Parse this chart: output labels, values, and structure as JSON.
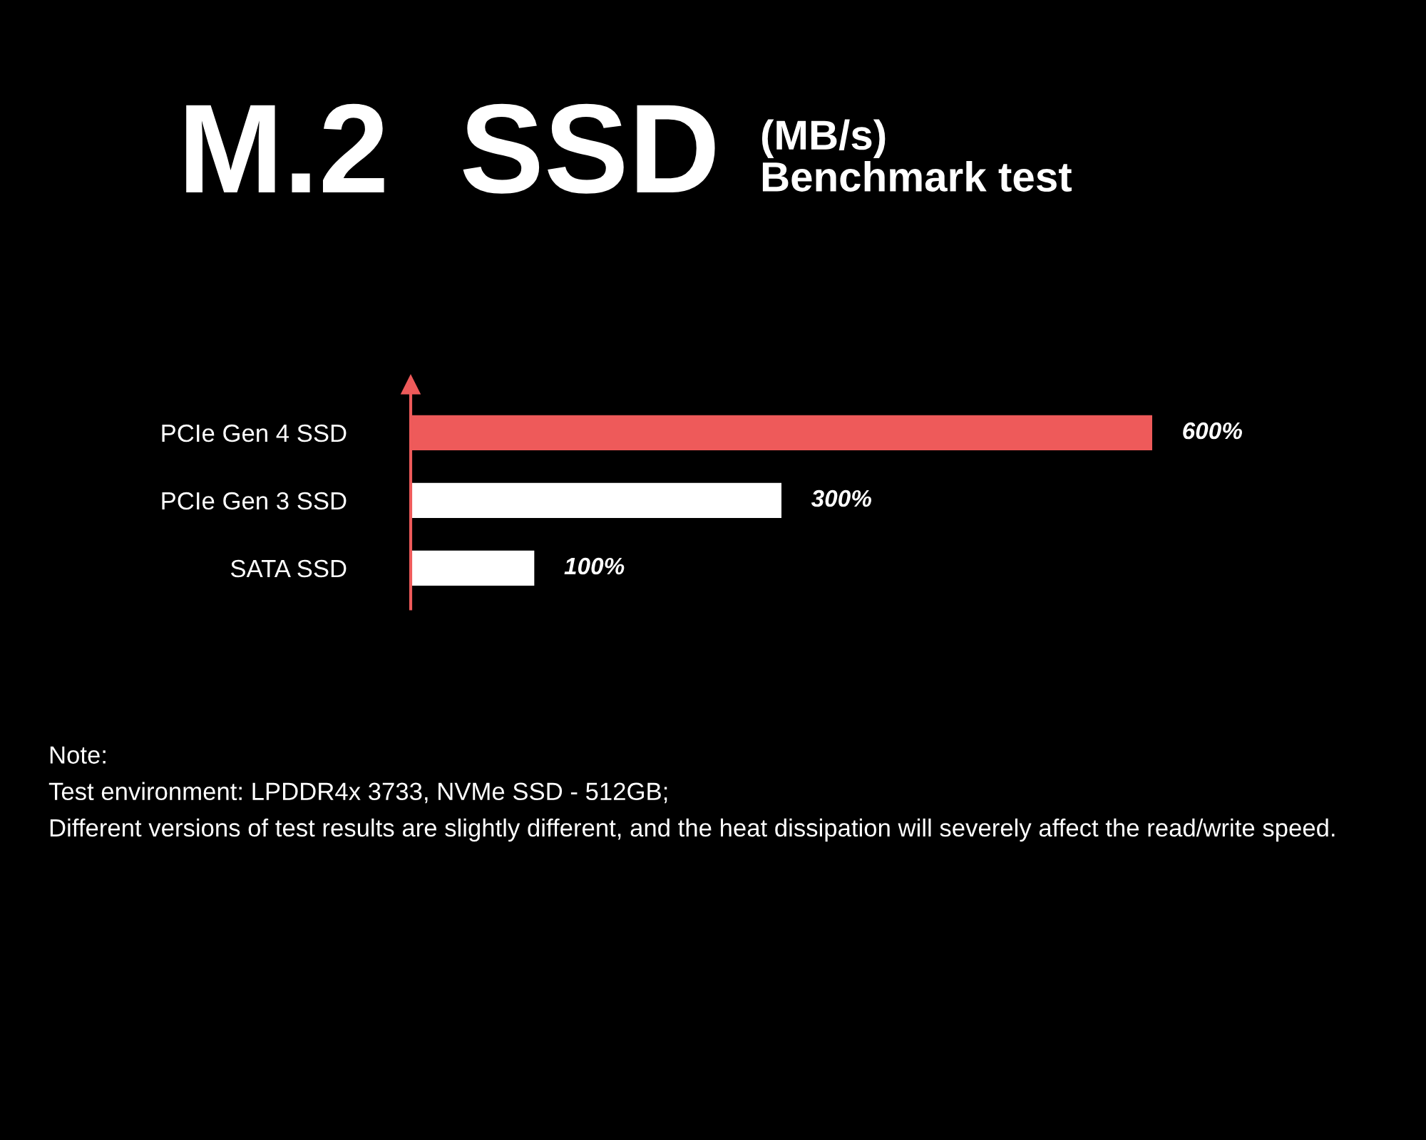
{
  "chart_data": {
    "type": "bar",
    "orientation": "horizontal",
    "title": "M.2  SSD",
    "subtitle": "(MB/s)\nBenchmark test",
    "categories": [
      "PCIe Gen 4 SSD",
      "PCIe Gen 3 SSD",
      "SATA SSD"
    ],
    "values": [
      600,
      300,
      100
    ],
    "value_labels": [
      "600%",
      "300%",
      "100%"
    ],
    "colors": [
      "#ee5a5a",
      "#ffffff",
      "#ffffff"
    ],
    "tick_labels": "y",
    "annotations": [
      "Note:",
      "Test environment: LPDDR4x 3733, NVMe SSD - 512GB;",
      "Different versions of test results are slightly different, and the heat dissipation will severely affect the read/write speed."
    ]
  }
}
